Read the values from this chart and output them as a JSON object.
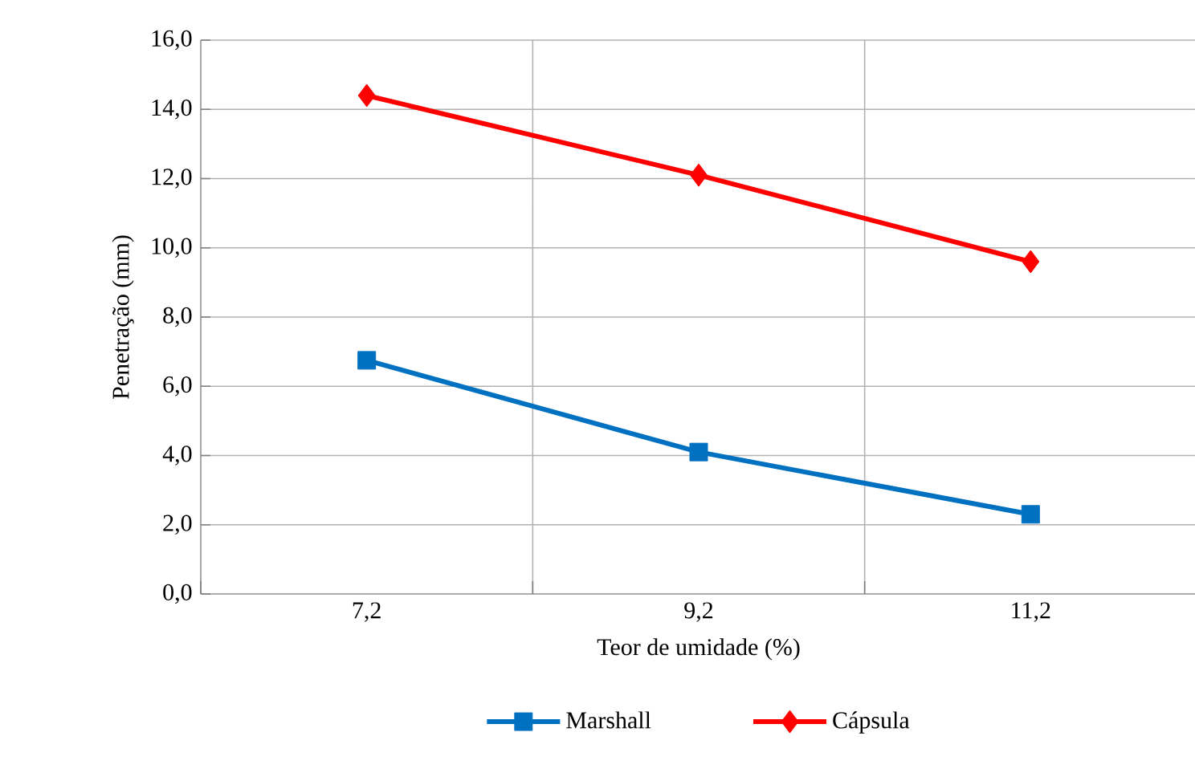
{
  "chart_data": {
    "type": "line",
    "xlabel": "Teor de umidade (%)",
    "ylabel": "Penetração (mm)",
    "categories": [
      "7,2",
      "9,2",
      "11,2"
    ],
    "series": [
      {
        "name": "Marshall",
        "color": "#0070c0",
        "marker": "square",
        "values": [
          6.75,
          4.1,
          2.3
        ]
      },
      {
        "name": "Cápsula",
        "color": "#ff0000",
        "marker": "diamond",
        "values": [
          14.4,
          12.1,
          9.6
        ]
      }
    ],
    "ylim": [
      0,
      16
    ],
    "yticks": [
      {
        "value": 0,
        "label": "0,0"
      },
      {
        "value": 2,
        "label": "2,0"
      },
      {
        "value": 4,
        "label": "4,0"
      },
      {
        "value": 6,
        "label": "6,0"
      },
      {
        "value": 8,
        "label": "8,0"
      },
      {
        "value": 10,
        "label": "10,0"
      },
      {
        "value": 12,
        "label": "12,0"
      },
      {
        "value": 14,
        "label": "14,0"
      },
      {
        "value": 16,
        "label": "16,0"
      }
    ],
    "grid": true,
    "legend": "bottom"
  }
}
